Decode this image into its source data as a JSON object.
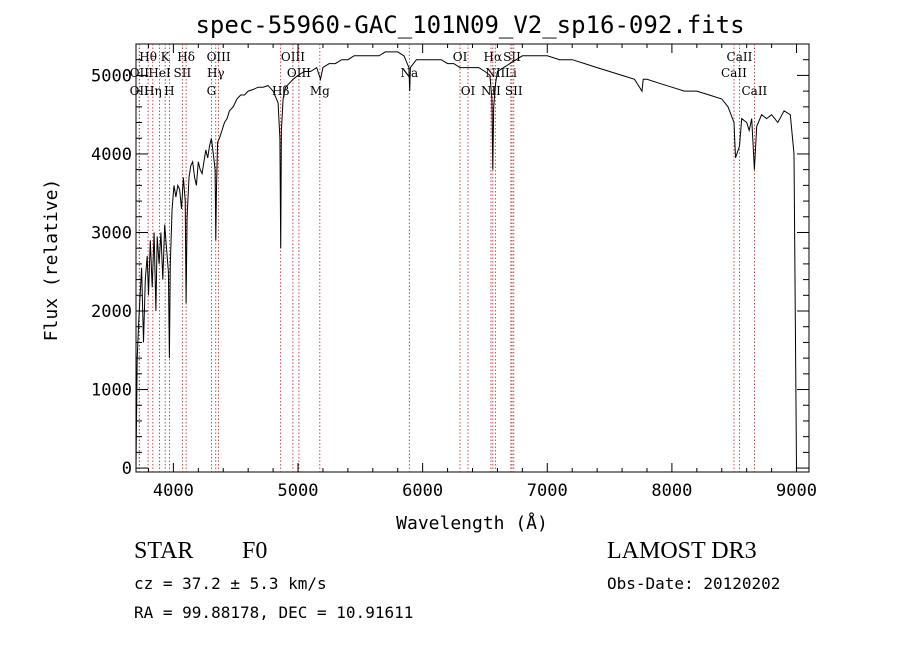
{
  "chart_data": {
    "type": "line",
    "title": "spec-55960-GAC_101N09_V2_sp16-092.fits",
    "xlabel": "Wavelength (Å)",
    "ylabel": "Flux (relative)",
    "xlim": [
      3700,
      9100
    ],
    "ylim": [
      -50,
      5400
    ],
    "x_ticks": [
      4000,
      5000,
      6000,
      7000,
      8000,
      9000
    ],
    "y_ticks": [
      0,
      1000,
      2000,
      3000,
      4000,
      5000
    ],
    "x_tick_labels": [
      "4000",
      "5000",
      "6000",
      "7000",
      "8000",
      "9000"
    ],
    "y_tick_labels": [
      "0",
      "1000",
      "2000",
      "3000",
      "4000",
      "5000"
    ],
    "series": [
      {
        "name": "flux",
        "x": [
          3700,
          3710,
          3720,
          3730,
          3745,
          3760,
          3775,
          3790,
          3800,
          3815,
          3830,
          3845,
          3860,
          3870,
          3885,
          3900,
          3915,
          3930,
          3945,
          3960,
          3968,
          3975,
          3990,
          4005,
          4020,
          4035,
          4050,
          4065,
          4080,
          4095,
          4102,
          4110,
          4125,
          4140,
          4155,
          4170,
          4185,
          4200,
          4215,
          4230,
          4245,
          4260,
          4275,
          4290,
          4305,
          4320,
          4335,
          4340,
          4345,
          4355,
          4370,
          4390,
          4410,
          4430,
          4450,
          4480,
          4510,
          4540,
          4570,
          4600,
          4640,
          4680,
          4720,
          4760,
          4800,
          4840,
          4855,
          4861,
          4867,
          4880,
          4900,
          4930,
          4960,
          5000,
          5050,
          5100,
          5150,
          5180,
          5200,
          5250,
          5300,
          5350,
          5400,
          5450,
          5500,
          5550,
          5600,
          5650,
          5700,
          5750,
          5800,
          5850,
          5890,
          5896,
          5902,
          5950,
          6000,
          6050,
          6100,
          6150,
          6200,
          6250,
          6300,
          6350,
          6400,
          6450,
          6500,
          6540,
          6556,
          6563,
          6570,
          6585,
          6600,
          6650,
          6700,
          6750,
          6800,
          6850,
          6900,
          6950,
          7000,
          7100,
          7200,
          7300,
          7400,
          7500,
          7600,
          7700,
          7760,
          7770,
          7800,
          7900,
          8000,
          8100,
          8200,
          8300,
          8400,
          8450,
          8498,
          8510,
          8542,
          8560,
          8600,
          8620,
          8640,
          8662,
          8680,
          8720,
          8760,
          8800,
          8850,
          8900,
          8950,
          8980,
          9000
        ],
        "values": [
          0,
          1400,
          1800,
          2100,
          2550,
          1600,
          2400,
          2700,
          2200,
          2900,
          2300,
          3000,
          2000,
          2950,
          2600,
          3000,
          2400,
          3100,
          2800,
          2500,
          1400,
          2600,
          3300,
          3600,
          3450,
          3600,
          3550,
          3300,
          3700,
          3400,
          2100,
          3200,
          3700,
          3850,
          3900,
          3700,
          3600,
          3900,
          3800,
          3750,
          3900,
          4050,
          3950,
          4100,
          4200,
          4000,
          3800,
          2900,
          3500,
          4150,
          4200,
          4300,
          4400,
          4450,
          4550,
          4600,
          4700,
          4750,
          4750,
          4800,
          4820,
          4850,
          4850,
          4870,
          4800,
          4650,
          4200,
          2800,
          4300,
          4700,
          4850,
          4900,
          4950,
          5000,
          5050,
          5050,
          5100,
          4950,
          5100,
          5150,
          5150,
          5200,
          5200,
          5250,
          5250,
          5250,
          5250,
          5250,
          5300,
          5300,
          5300,
          5250,
          5100,
          4800,
          5100,
          5200,
          5200,
          5200,
          5200,
          5200,
          5150,
          5150,
          5100,
          5100,
          5100,
          5100,
          5050,
          5000,
          4700,
          3800,
          4600,
          4900,
          5050,
          5100,
          5150,
          5200,
          5250,
          5250,
          5250,
          5250,
          5250,
          5200,
          5200,
          5150,
          5100,
          5050,
          5000,
          4950,
          4800,
          4950,
          4950,
          4900,
          4850,
          4800,
          4800,
          4750,
          4700,
          4600,
          4400,
          3950,
          4100,
          4450,
          4400,
          4300,
          4450,
          3800,
          4350,
          4500,
          4450,
          4500,
          4400,
          4550,
          4500,
          4000,
          0
        ]
      }
    ],
    "line_markers": [
      {
        "label": "Hθ",
        "wavelength": 3797,
        "row": 0
      },
      {
        "label": "K",
        "wavelength": 3934,
        "row": 0
      },
      {
        "label": "Hδ",
        "wavelength": 4102,
        "row": 0
      },
      {
        "label": "OIII",
        "wavelength": 4363,
        "row": 0
      },
      {
        "label": "OIII",
        "wavelength": 4959,
        "row": 0
      },
      {
        "label": "OI",
        "wavelength": 6300,
        "row": 0
      },
      {
        "label": "Hα",
        "wavelength": 6563,
        "row": 0
      },
      {
        "label": "SII",
        "wavelength": 6717,
        "row": 0
      },
      {
        "label": "CaII",
        "wavelength": 8542,
        "row": 0
      },
      {
        "label": "OII",
        "wavelength": 3727,
        "row": 1
      },
      {
        "label": "HeI",
        "wavelength": 3889,
        "row": 1
      },
      {
        "label": "SII",
        "wavelength": 4072,
        "row": 1
      },
      {
        "label": "Hγ",
        "wavelength": 4340,
        "row": 1
      },
      {
        "label": "OIII",
        "wavelength": 5007,
        "row": 1
      },
      {
        "label": "Na",
        "wavelength": 5893,
        "row": 1
      },
      {
        "label": "NII",
        "wavelength": 6583,
        "row": 1
      },
      {
        "label": "Li",
        "wavelength": 6708,
        "row": 1
      },
      {
        "label": "CaII",
        "wavelength": 8498,
        "row": 1
      },
      {
        "label": "OII",
        "wavelength": 3726,
        "row": 2
      },
      {
        "label": "Hη",
        "wavelength": 3835,
        "row": 2
      },
      {
        "label": "H",
        "wavelength": 3968,
        "row": 2
      },
      {
        "label": "G",
        "wavelength": 4305,
        "row": 2
      },
      {
        "label": "Hβ",
        "wavelength": 4861,
        "row": 2
      },
      {
        "label": "Mg",
        "wavelength": 5175,
        "row": 2
      },
      {
        "label": "OI",
        "wavelength": 6364,
        "row": 2
      },
      {
        "label": "NII",
        "wavelength": 6548,
        "row": 2
      },
      {
        "label": "SII",
        "wavelength": 6731,
        "row": 2
      },
      {
        "label": "CaII",
        "wavelength": 8662,
        "row": 2
      }
    ],
    "marker_color": "#b22222"
  },
  "info": {
    "object_class": "STAR",
    "subclass": "F0",
    "survey": "LAMOST DR3",
    "cz": "cz = 37.2 ± 5.3 km/s",
    "obs_date": "Obs-Date: 20120202",
    "coords": "RA =  99.88178, DEC =  10.91611"
  }
}
